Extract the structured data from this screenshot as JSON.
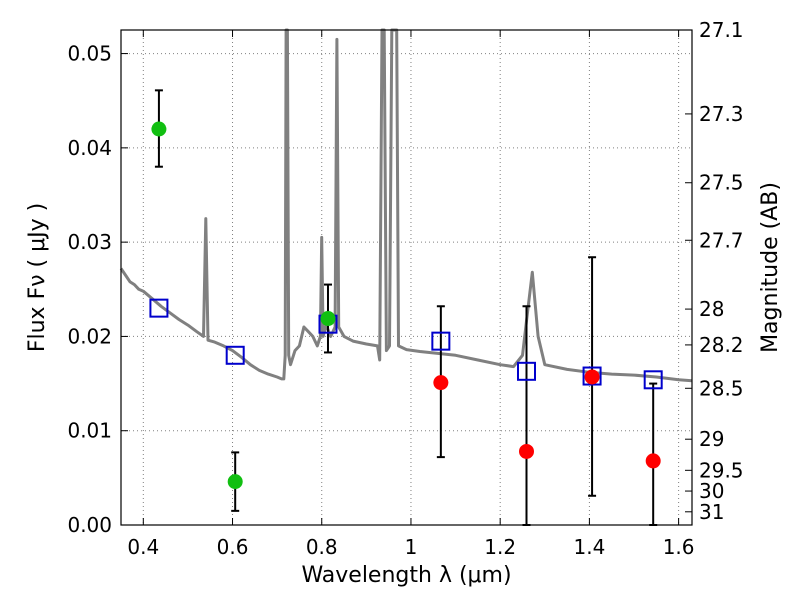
{
  "chart_data": {
    "type": "scatter",
    "title": "",
    "xlabel": "Wavelength  λ (μm)",
    "ylabel": "Flux  Fν  ( μJy )",
    "y2label": "Magnitude (AB)",
    "xlim": [
      0.35,
      1.63
    ],
    "ylim": [
      0.0,
      0.0525
    ],
    "grid": true,
    "grid_style": "dotted",
    "x_ticks": [
      0.4,
      0.6,
      0.8,
      1.0,
      1.2,
      1.4,
      1.6
    ],
    "x_tick_labels": [
      "0.4",
      "0.6",
      "0.8",
      "1",
      "1.2",
      "1.4",
      "1.6"
    ],
    "y_ticks": [
      0.0,
      0.01,
      0.02,
      0.03,
      0.04,
      0.05
    ],
    "y_tick_labels": [
      "0.00",
      "0.01",
      "0.02",
      "0.03",
      "0.04",
      "0.05"
    ],
    "y2_ticks": [
      {
        "label": "27.1",
        "flux": 0.0525
      },
      {
        "label": "27.3",
        "flux": 0.0436
      },
      {
        "label": "27.5",
        "flux": 0.0363
      },
      {
        "label": "27.7",
        "flux": 0.0302
      },
      {
        "label": "28",
        "flux": 0.0229
      },
      {
        "label": "28.2",
        "flux": 0.0191
      },
      {
        "label": "28.5",
        "flux": 0.0145
      },
      {
        "label": "29",
        "flux": 0.0091
      },
      {
        "label": "29.5",
        "flux": 0.0058
      },
      {
        "label": "30",
        "flux": 0.0036
      },
      {
        "label": "31",
        "flux": 0.0014
      }
    ],
    "colors": {
      "sed": "#808080",
      "detections": "#11bf11",
      "upper_limits": "#ff0000",
      "model_boxes": "#0000cc",
      "errorbars": "#000000",
      "grid": "#808080"
    },
    "series": [
      {
        "role": "detections",
        "marker": "circle",
        "points": [
          {
            "x": 0.435,
            "y": 0.042,
            "err_lo": 0.038,
            "err_hi": 0.0461
          },
          {
            "x": 0.606,
            "y": 0.0046,
            "err_lo": 0.0015,
            "err_hi": 0.0077
          },
          {
            "x": 0.814,
            "y": 0.0219,
            "err_lo": 0.0183,
            "err_hi": 0.0255
          }
        ]
      },
      {
        "role": "non-detections",
        "marker": "circle",
        "points": [
          {
            "x": 1.067,
            "y": 0.0151,
            "err_lo": 0.0072,
            "err_hi": 0.0232
          },
          {
            "x": 1.259,
            "y": 0.0078,
            "err_lo": 0.0,
            "err_hi": 0.0232
          },
          {
            "x": 1.406,
            "y": 0.0157,
            "err_lo": 0.0031,
            "err_hi": 0.0284
          },
          {
            "x": 1.543,
            "y": 0.0068,
            "err_lo": 0.0,
            "err_hi": 0.015
          }
        ]
      },
      {
        "role": "model-band-fluxes",
        "marker": "square",
        "points": [
          {
            "x": 0.435,
            "y": 0.023
          },
          {
            "x": 0.606,
            "y": 0.018
          },
          {
            "x": 0.814,
            "y": 0.0213
          },
          {
            "x": 1.067,
            "y": 0.0195
          },
          {
            "x": 1.259,
            "y": 0.0163
          },
          {
            "x": 1.406,
            "y": 0.0158
          },
          {
            "x": 1.543,
            "y": 0.0154
          }
        ]
      },
      {
        "role": "sed-model",
        "marker": "line",
        "points": [
          [
            0.35,
            0.0272
          ],
          [
            0.36,
            0.0265
          ],
          [
            0.37,
            0.0258
          ],
          [
            0.38,
            0.0255
          ],
          [
            0.39,
            0.025
          ],
          [
            0.4,
            0.0248
          ],
          [
            0.42,
            0.024
          ],
          [
            0.44,
            0.0232
          ],
          [
            0.46,
            0.0225
          ],
          [
            0.48,
            0.0218
          ],
          [
            0.5,
            0.0212
          ],
          [
            0.52,
            0.0205
          ],
          [
            0.535,
            0.02
          ],
          [
            0.54,
            0.0325
          ],
          [
            0.545,
            0.0196
          ],
          [
            0.56,
            0.0194
          ],
          [
            0.58,
            0.019
          ],
          [
            0.6,
            0.0185
          ],
          [
            0.62,
            0.0178
          ],
          [
            0.64,
            0.017
          ],
          [
            0.66,
            0.0164
          ],
          [
            0.68,
            0.016
          ],
          [
            0.7,
            0.0157
          ],
          [
            0.71,
            0.0155
          ],
          [
            0.715,
            0.0155
          ],
          [
            0.718,
            0.018
          ],
          [
            0.72,
            0.0525
          ],
          [
            0.723,
            0.0525
          ],
          [
            0.726,
            0.018
          ],
          [
            0.73,
            0.017
          ],
          [
            0.74,
            0.0185
          ],
          [
            0.75,
            0.019
          ],
          [
            0.76,
            0.021
          ],
          [
            0.77,
            0.0205
          ],
          [
            0.78,
            0.02
          ],
          [
            0.79,
            0.019
          ],
          [
            0.797,
            0.02
          ],
          [
            0.8,
            0.0305
          ],
          [
            0.803,
            0.02
          ],
          [
            0.81,
            0.0212
          ],
          [
            0.82,
            0.02
          ],
          [
            0.83,
            0.021
          ],
          [
            0.834,
            0.0515
          ],
          [
            0.838,
            0.021
          ],
          [
            0.85,
            0.02
          ],
          [
            0.87,
            0.0195
          ],
          [
            0.9,
            0.0192
          ],
          [
            0.925,
            0.019
          ],
          [
            0.93,
            0.0175
          ],
          [
            0.935,
            0.0525
          ],
          [
            0.94,
            0.0525
          ],
          [
            0.945,
            0.0185
          ],
          [
            0.952,
            0.019
          ],
          [
            0.957,
            0.0525
          ],
          [
            0.968,
            0.0525
          ],
          [
            0.972,
            0.019
          ],
          [
            0.99,
            0.0186
          ],
          [
            1.02,
            0.0184
          ],
          [
            1.06,
            0.0182
          ],
          [
            1.1,
            0.018
          ],
          [
            1.15,
            0.0175
          ],
          [
            1.2,
            0.017
          ],
          [
            1.23,
            0.0168
          ],
          [
            1.25,
            0.018
          ],
          [
            1.26,
            0.022
          ],
          [
            1.272,
            0.0268
          ],
          [
            1.285,
            0.02
          ],
          [
            1.3,
            0.017
          ],
          [
            1.35,
            0.0165
          ],
          [
            1.4,
            0.0162
          ],
          [
            1.45,
            0.016
          ],
          [
            1.5,
            0.0159
          ],
          [
            1.55,
            0.0157
          ],
          [
            1.6,
            0.0154
          ],
          [
            1.63,
            0.0153
          ]
        ]
      }
    ]
  }
}
